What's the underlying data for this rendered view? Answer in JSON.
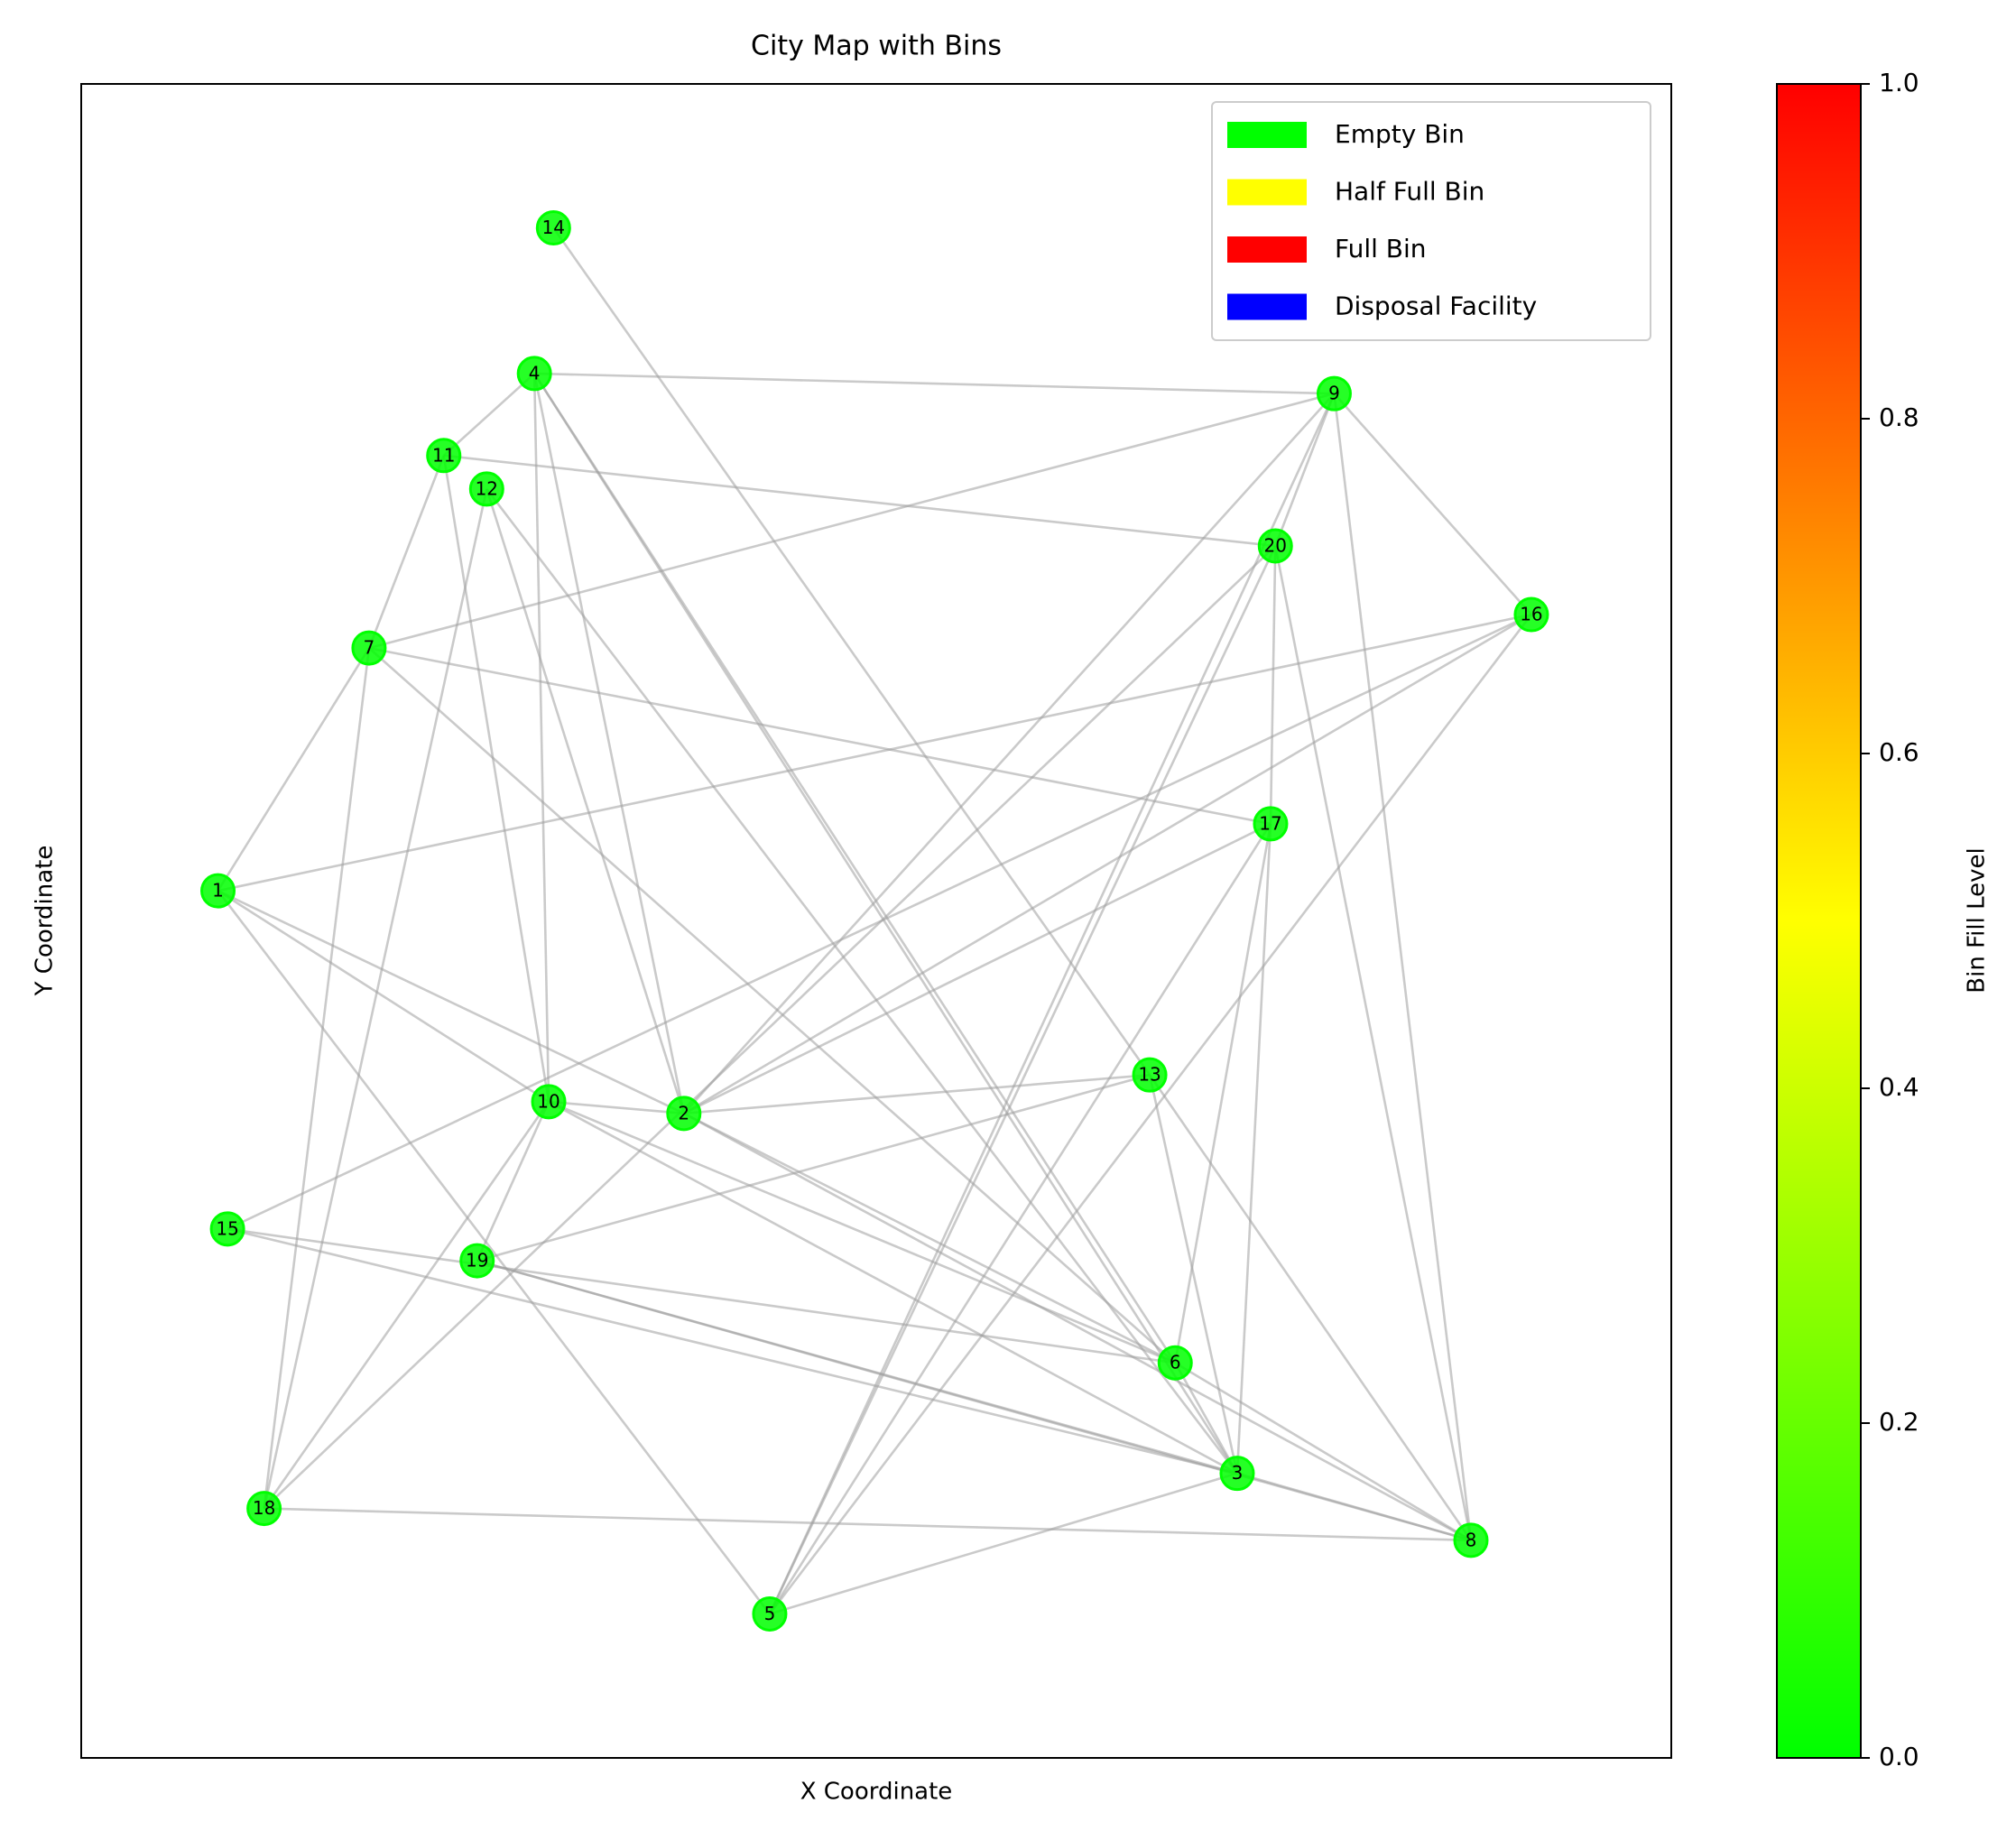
{
  "chart_data": {
    "type": "network",
    "title": "City Map with Bins",
    "x_label": "X Coordinate",
    "y_label": "Y Coordinate",
    "xlim": [
      0,
      100
    ],
    "ylim": [
      0,
      100
    ],
    "nodes": [
      {
        "label": "1",
        "x": 8.6,
        "y": 51.8,
        "fill_level": 0
      },
      {
        "label": "2",
        "x": 37.9,
        "y": 38.5,
        "fill_level": 0
      },
      {
        "label": "3",
        "x": 72.7,
        "y": 17.0,
        "fill_level": 0
      },
      {
        "label": "4",
        "x": 28.5,
        "y": 82.7,
        "fill_level": 0
      },
      {
        "label": "5",
        "x": 43.3,
        "y": 8.6,
        "fill_level": 0
      },
      {
        "label": "6",
        "x": 68.8,
        "y": 23.6,
        "fill_level": 0
      },
      {
        "label": "7",
        "x": 18.1,
        "y": 66.3,
        "fill_level": 0
      },
      {
        "label": "8",
        "x": 87.4,
        "y": 13.0,
        "fill_level": 0
      },
      {
        "label": "9",
        "x": 78.8,
        "y": 81.5,
        "fill_level": 0
      },
      {
        "label": "10",
        "x": 29.4,
        "y": 39.2,
        "fill_level": 0
      },
      {
        "label": "11",
        "x": 22.8,
        "y": 77.8,
        "fill_level": 0
      },
      {
        "label": "12",
        "x": 25.5,
        "y": 75.8,
        "fill_level": 0
      },
      {
        "label": "13",
        "x": 67.2,
        "y": 40.8,
        "fill_level": 0
      },
      {
        "label": "14",
        "x": 29.7,
        "y": 91.4,
        "fill_level": 0
      },
      {
        "label": "15",
        "x": 9.2,
        "y": 31.6,
        "fill_level": 0
      },
      {
        "label": "16",
        "x": 91.2,
        "y": 68.3,
        "fill_level": 0
      },
      {
        "label": "17",
        "x": 74.8,
        "y": 55.8,
        "fill_level": 0
      },
      {
        "label": "18",
        "x": 11.5,
        "y": 14.9,
        "fill_level": 0
      },
      {
        "label": "19",
        "x": 24.9,
        "y": 29.7,
        "fill_level": 0
      },
      {
        "label": "20",
        "x": 75.1,
        "y": 72.4,
        "fill_level": 0
      }
    ],
    "edges": [
      [
        "14",
        "13"
      ],
      [
        "4",
        "9"
      ],
      [
        "4",
        "11"
      ],
      [
        "4",
        "10"
      ],
      [
        "4",
        "2"
      ],
      [
        "4",
        "6"
      ],
      [
        "4",
        "3"
      ],
      [
        "11",
        "20"
      ],
      [
        "11",
        "7"
      ],
      [
        "11",
        "10"
      ],
      [
        "12",
        "2"
      ],
      [
        "12",
        "18"
      ],
      [
        "12",
        "3"
      ],
      [
        "7",
        "9"
      ],
      [
        "7",
        "1"
      ],
      [
        "7",
        "17"
      ],
      [
        "7",
        "18"
      ],
      [
        "7",
        "6"
      ],
      [
        "1",
        "16"
      ],
      [
        "1",
        "2"
      ],
      [
        "1",
        "10"
      ],
      [
        "1",
        "5"
      ],
      [
        "9",
        "20"
      ],
      [
        "9",
        "16"
      ],
      [
        "9",
        "8"
      ],
      [
        "9",
        "2"
      ],
      [
        "9",
        "5"
      ],
      [
        "20",
        "5"
      ],
      [
        "20",
        "17"
      ],
      [
        "20",
        "8"
      ],
      [
        "18",
        "20"
      ],
      [
        "16",
        "15"
      ],
      [
        "16",
        "2"
      ],
      [
        "16",
        "5"
      ],
      [
        "17",
        "2"
      ],
      [
        "17",
        "5"
      ],
      [
        "17",
        "6"
      ],
      [
        "17",
        "3"
      ],
      [
        "13",
        "2"
      ],
      [
        "13",
        "19"
      ],
      [
        "13",
        "3"
      ],
      [
        "13",
        "8"
      ],
      [
        "10",
        "2"
      ],
      [
        "10",
        "6"
      ],
      [
        "10",
        "3"
      ],
      [
        "10",
        "18"
      ],
      [
        "10",
        "19"
      ],
      [
        "2",
        "6"
      ],
      [
        "2",
        "8"
      ],
      [
        "15",
        "6"
      ],
      [
        "15",
        "3"
      ],
      [
        "19",
        "3"
      ],
      [
        "19",
        "8"
      ],
      [
        "3",
        "5"
      ],
      [
        "3",
        "8"
      ],
      [
        "6",
        "8"
      ],
      [
        "18",
        "8"
      ],
      [
        "6",
        "3"
      ]
    ],
    "legend": {
      "position": "upper right",
      "entries": [
        {
          "name": "Empty Bin",
          "color": "#00ff00"
        },
        {
          "name": "Half Full Bin",
          "color": "#ffff00"
        },
        {
          "name": "Full Bin",
          "color": "#ff0000"
        },
        {
          "name": "Disposal Facility",
          "color": "#0000ff"
        }
      ]
    },
    "colorbar": {
      "label": "Bin Fill Level",
      "colormap": [
        "#00ff00",
        "#ffff00",
        "#ff0000"
      ],
      "ylim": [
        0,
        1
      ],
      "yticks": [
        {
          "value": 0,
          "label": "0.0"
        },
        0.2,
        0.4,
        0.6,
        0.8,
        {
          "value": 1,
          "label": "1.0"
        }
      ]
    }
  }
}
